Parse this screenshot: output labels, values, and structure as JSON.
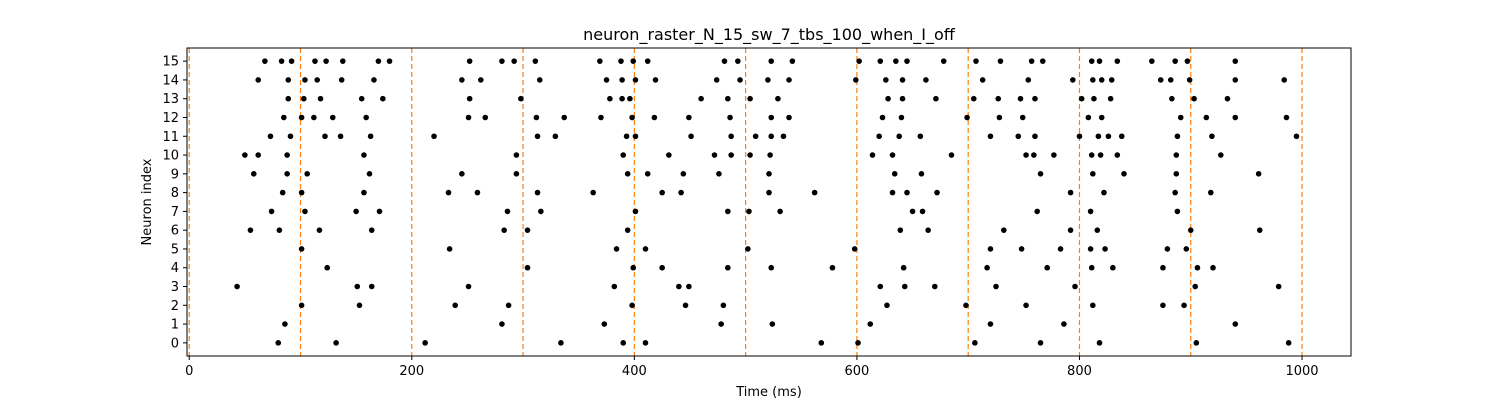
{
  "chart_data": {
    "type": "scatter",
    "title": "neuron_raster_N_15_sw_7_tbs_100_when_I_off",
    "xlabel": "Time (ms)",
    "ylabel": "Neuron index",
    "xlim": [
      -2,
      1044
    ],
    "ylim": [
      -0.7,
      15.7
    ],
    "xticks": [
      0,
      200,
      400,
      600,
      800,
      1000
    ],
    "yticks": [
      0,
      1,
      2,
      3,
      4,
      5,
      6,
      7,
      8,
      9,
      10,
      11,
      12,
      13,
      14,
      15
    ],
    "grid": false,
    "legend": "none",
    "marker_color": "#000000",
    "vline_color": "#ff7f0e",
    "vlines": [
      0,
      100,
      200,
      300,
      400,
      500,
      600,
      700,
      800,
      900,
      1000
    ],
    "series": [
      {
        "neuron": 0,
        "spike_times": [
          80,
          132,
          212,
          334,
          390,
          410,
          568,
          601,
          706,
          765,
          818,
          905,
          988
        ]
      },
      {
        "neuron": 1,
        "spike_times": [
          86,
          281,
          373,
          478,
          524,
          612,
          720,
          786,
          940
        ]
      },
      {
        "neuron": 2,
        "spike_times": [
          101,
          153,
          239,
          287,
          398,
          446,
          480,
          627,
          698,
          752,
          812,
          875,
          894
        ]
      },
      {
        "neuron": 3,
        "spike_times": [
          43,
          151,
          164,
          251,
          382,
          440,
          449,
          621,
          643,
          670,
          725,
          796,
          904,
          979
        ]
      },
      {
        "neuron": 4,
        "spike_times": [
          124,
          304,
          399,
          425,
          484,
          523,
          578,
          642,
          717,
          771,
          811,
          830,
          875,
          906,
          920
        ]
      },
      {
        "neuron": 5,
        "spike_times": [
          101,
          234,
          384,
          410,
          502,
          598,
          720,
          748,
          783,
          810,
          823,
          879,
          896
        ]
      },
      {
        "neuron": 6,
        "spike_times": [
          55,
          81,
          117,
          164,
          283,
          304,
          394,
          639,
          664,
          732,
          792,
          816,
          900,
          962
        ]
      },
      {
        "neuron": 7,
        "spike_times": [
          74,
          104,
          150,
          171,
          286,
          316,
          401,
          484,
          503,
          531,
          650,
          659,
          762,
          810,
          888
        ]
      },
      {
        "neuron": 8,
        "spike_times": [
          84,
          101,
          157,
          233,
          259,
          313,
          363,
          425,
          442,
          521,
          562,
          632,
          645,
          672,
          792,
          822,
          886,
          918
        ]
      },
      {
        "neuron": 9,
        "spike_times": [
          58,
          88,
          106,
          162,
          245,
          294,
          394,
          412,
          444,
          476,
          521,
          634,
          658,
          765,
          812,
          840,
          887,
          961
        ]
      },
      {
        "neuron": 10,
        "spike_times": [
          50,
          62,
          88,
          157,
          294,
          390,
          431,
          472,
          487,
          504,
          522,
          614,
          632,
          685,
          752,
          759,
          777,
          811,
          819,
          834,
          887,
          927
        ]
      },
      {
        "neuron": 11,
        "spike_times": [
          73,
          91,
          122,
          136,
          163,
          220,
          313,
          329,
          393,
          401,
          451,
          487,
          509,
          523,
          534,
          620,
          638,
          657,
          720,
          745,
          760,
          800,
          817,
          826,
          838,
          888,
          919,
          995
        ]
      },
      {
        "neuron": 12,
        "spike_times": [
          85,
          101,
          112,
          129,
          159,
          251,
          266,
          312,
          337,
          370,
          398,
          418,
          449,
          486,
          523,
          539,
          623,
          640,
          699,
          728,
          749,
          808,
          820,
          891,
          914,
          940,
          986
        ]
      },
      {
        "neuron": 13,
        "spike_times": [
          89,
          103,
          118,
          155,
          174,
          252,
          298,
          378,
          389,
          396,
          460,
          484,
          504,
          529,
          628,
          641,
          671,
          705,
          727,
          747,
          760,
          802,
          813,
          828,
          883,
          903,
          933
        ]
      },
      {
        "neuron": 14,
        "spike_times": [
          62,
          89,
          104,
          115,
          137,
          166,
          245,
          262,
          315,
          375,
          389,
          401,
          419,
          474,
          495,
          520,
          539,
          599,
          626,
          641,
          662,
          713,
          754,
          794,
          812,
          820,
          829,
          873,
          882,
          899,
          940,
          984
        ]
      },
      {
        "neuron": 15,
        "spike_times": [
          68,
          83,
          92,
          113,
          123,
          138,
          170,
          180,
          252,
          281,
          292,
          311,
          369,
          388,
          399,
          412,
          481,
          493,
          523,
          542,
          602,
          621,
          635,
          645,
          678,
          707,
          729,
          757,
          767,
          811,
          818,
          834,
          865,
          886,
          897,
          940
        ]
      }
    ]
  }
}
